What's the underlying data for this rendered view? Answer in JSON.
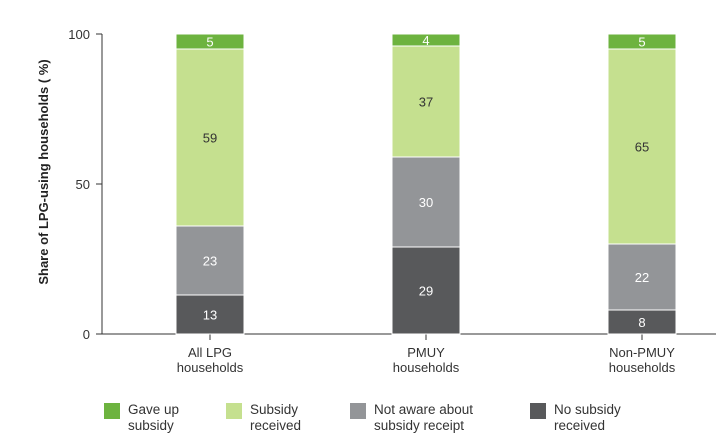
{
  "chart_data": {
    "type": "bar",
    "stacked": true,
    "ylabel": "Share of LPG-using households ( %)",
    "ylim": [
      0,
      100
    ],
    "yticks": [
      0,
      50,
      100
    ],
    "categories": [
      "All LPG\nhouseholds",
      "PMUY\nhouseholds",
      "Non-PMUY\nhouseholds"
    ],
    "series": [
      {
        "name": "No subsidy\nreceived",
        "color": "#58595b",
        "text_color": "#ffffff",
        "values": [
          13,
          29,
          8
        ]
      },
      {
        "name": "Not aware about\nsubsidy receipt",
        "color": "#939598",
        "text_color": "#ffffff",
        "values": [
          23,
          30,
          22
        ]
      },
      {
        "name": "Subsidy\nreceived",
        "color": "#c5e08f",
        "text_color": "#333333",
        "values": [
          59,
          37,
          65
        ]
      },
      {
        "name": "Gave up\nsubsidy",
        "color": "#6db33f",
        "text_color": "#ffffff",
        "values": [
          5,
          4,
          5
        ]
      }
    ],
    "legend_order": [
      3,
      2,
      1,
      0
    ],
    "legend_position": "bottom",
    "grid": false
  }
}
